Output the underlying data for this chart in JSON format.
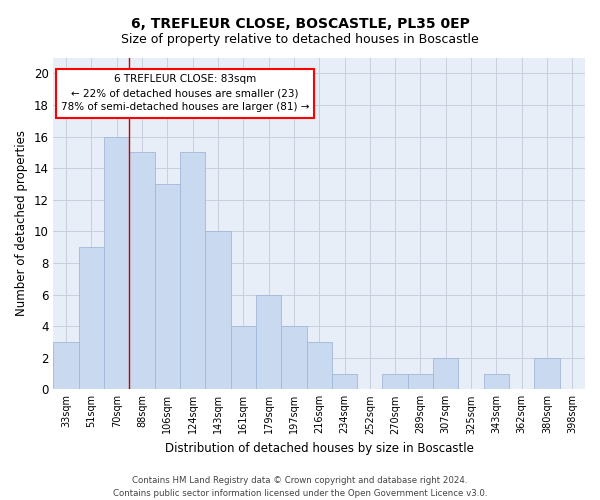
{
  "title": "6, TREFLEUR CLOSE, BOSCASTLE, PL35 0EP",
  "subtitle": "Size of property relative to detached houses in Boscastle",
  "xlabel": "Distribution of detached houses by size in Boscastle",
  "ylabel": "Number of detached properties",
  "categories": [
    "33sqm",
    "51sqm",
    "70sqm",
    "88sqm",
    "106sqm",
    "124sqm",
    "143sqm",
    "161sqm",
    "179sqm",
    "197sqm",
    "216sqm",
    "234sqm",
    "252sqm",
    "270sqm",
    "289sqm",
    "307sqm",
    "325sqm",
    "343sqm",
    "362sqm",
    "380sqm",
    "398sqm"
  ],
  "values": [
    3,
    9,
    16,
    15,
    13,
    15,
    10,
    4,
    6,
    4,
    3,
    1,
    0,
    1,
    1,
    2,
    0,
    1,
    0,
    2,
    0
  ],
  "bar_color": "#c9d9f0",
  "bar_edge_color": "#a0b8d8",
  "vline_x_index": 2.5,
  "vline_color": "#cc0000",
  "annotation_line1": "6 TREFLEUR CLOSE: 83sqm",
  "annotation_line2": "← 22% of detached houses are smaller (23)",
  "annotation_line3": "78% of semi-detached houses are larger (81) →",
  "ylim": [
    0,
    21
  ],
  "yticks": [
    0,
    2,
    4,
    6,
    8,
    10,
    12,
    14,
    16,
    18,
    20
  ],
  "grid_color": "#c8d0e0",
  "bar_width": 1.0,
  "footnote": "Contains HM Land Registry data © Crown copyright and database right 2024.\nContains public sector information licensed under the Open Government Licence v3.0.",
  "bg_color": "#e8eef8"
}
